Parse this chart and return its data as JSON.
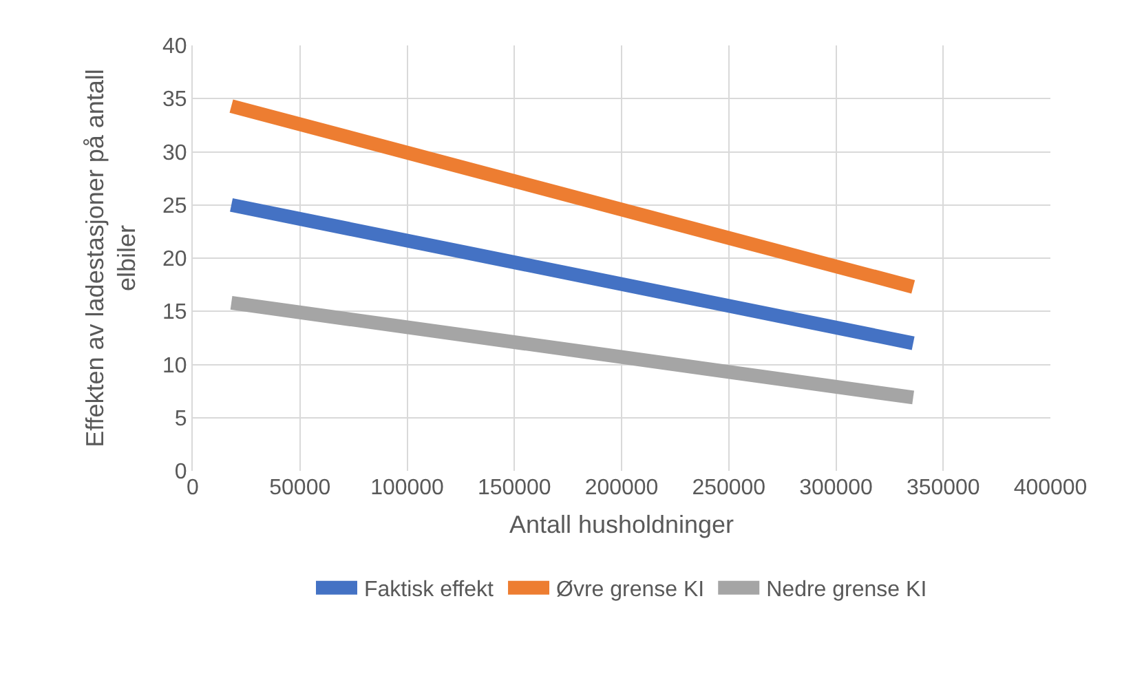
{
  "chart_data": {
    "type": "line",
    "xlabel": "Antall husholdninger",
    "ylabel": "Effekten av ladestasjoner på antall elbiler",
    "x": [
      18000,
      336000
    ],
    "series": [
      {
        "name": "Faktisk effekt",
        "color": "#4472c4",
        "values": [
          25.0,
          12.0
        ]
      },
      {
        "name": "Øvre grense KI",
        "color": "#ed7d31",
        "values": [
          34.3,
          17.3
        ]
      },
      {
        "name": "Nedre grense KI",
        "color": "#a5a5a5",
        "values": [
          15.8,
          6.9
        ]
      }
    ],
    "xlim": [
      0,
      400000
    ],
    "xticks": [
      0,
      50000,
      100000,
      150000,
      200000,
      250000,
      300000,
      350000,
      400000
    ],
    "ylim": [
      0,
      40
    ],
    "yticks": [
      0,
      5,
      10,
      15,
      20,
      25,
      30,
      35,
      40
    ],
    "grid": true,
    "legend": "bottom",
    "marker": "none",
    "line_style": "solid"
  }
}
